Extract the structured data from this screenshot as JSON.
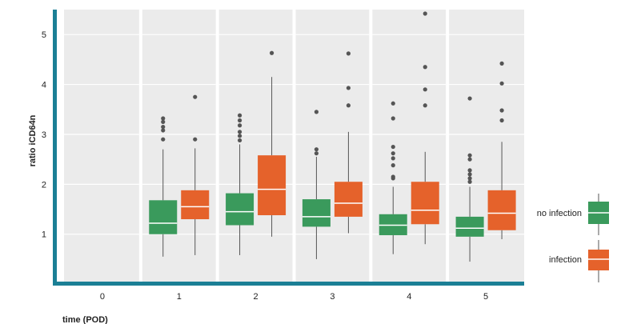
{
  "chart_data": {
    "type": "box",
    "xlabel": "time (POD)",
    "ylabel": "ratio iCD64n",
    "categories": [
      "0",
      "1",
      "2",
      "3",
      "4",
      "5"
    ],
    "yticks": [
      "1",
      "2",
      "3",
      "4",
      "5"
    ],
    "ylim": [
      0.05,
      5.5
    ],
    "grid": true,
    "legend_position": "right",
    "series": [
      {
        "name": "no infection",
        "color": "#3a9a5c",
        "boxes": [
          null,
          {
            "min": 0.55,
            "q1": 1.0,
            "median": 1.22,
            "q3": 1.68,
            "max": 2.7,
            "outliers": [
              2.9,
              3.08,
              3.15,
              3.25,
              3.32
            ]
          },
          {
            "min": 0.58,
            "q1": 1.18,
            "median": 1.45,
            "q3": 1.82,
            "max": 2.8,
            "outliers": [
              2.88,
              2.97,
              3.05,
              3.18,
              3.28,
              3.38
            ]
          },
          {
            "min": 0.5,
            "q1": 1.15,
            "median": 1.35,
            "q3": 1.7,
            "max": 2.55,
            "outliers": [
              2.62,
              2.7,
              3.45
            ]
          },
          {
            "min": 0.6,
            "q1": 0.98,
            "median": 1.18,
            "q3": 1.4,
            "max": 1.95,
            "outliers": [
              2.12,
              2.15,
              2.38,
              2.52,
              2.62,
              2.75,
              3.32,
              3.62
            ]
          },
          {
            "min": 0.45,
            "q1": 0.95,
            "median": 1.12,
            "q3": 1.35,
            "max": 1.95,
            "outliers": [
              2.05,
              2.12,
              2.2,
              2.28,
              2.5,
              2.58,
              3.72
            ]
          }
        ]
      },
      {
        "name": "infection",
        "color": "#e5622b",
        "boxes": [
          null,
          {
            "min": 0.58,
            "q1": 1.3,
            "median": 1.55,
            "q3": 1.88,
            "max": 2.72,
            "outliers": [
              2.9,
              3.75
            ]
          },
          {
            "min": 0.95,
            "q1": 1.38,
            "median": 1.9,
            "q3": 2.58,
            "max": 4.15,
            "outliers": [
              4.63
            ]
          },
          {
            "min": 1.02,
            "q1": 1.35,
            "median": 1.62,
            "q3": 2.05,
            "max": 3.05,
            "outliers": [
              3.58,
              3.93,
              4.62
            ]
          },
          {
            "min": 0.8,
            "q1": 1.2,
            "median": 1.48,
            "q3": 2.05,
            "max": 2.65,
            "outliers": [
              3.58,
              3.9,
              4.35,
              5.42
            ]
          },
          {
            "min": 0.9,
            "q1": 1.08,
            "median": 1.42,
            "q3": 1.88,
            "max": 2.85,
            "outliers": [
              3.28,
              3.48,
              4.02,
              4.42
            ]
          }
        ]
      }
    ]
  }
}
